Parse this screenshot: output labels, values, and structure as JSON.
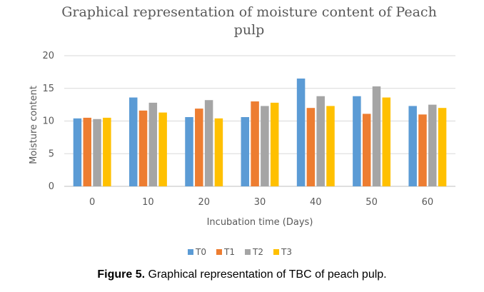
{
  "chart_data": {
    "type": "bar",
    "title_line1": "Graphical representation of moisture content of Peach",
    "title_line2": "pulp",
    "xlabel": "Incubation time (Days)",
    "ylabel": "Moisture content",
    "ylim": [
      0,
      20
    ],
    "yticks": [
      "0",
      "5",
      "10",
      "15",
      "20"
    ],
    "grid": true,
    "legend_position": "bottom-center",
    "categories": [
      "0",
      "10",
      "20",
      "30",
      "40",
      "50",
      "60"
    ],
    "series": [
      {
        "name": "T0",
        "color": "#5B9BD5",
        "values": [
          10.4,
          13.6,
          10.6,
          10.6,
          16.5,
          13.8,
          12.3
        ]
      },
      {
        "name": "T1",
        "color": "#ED7D31",
        "values": [
          10.5,
          11.6,
          11.9,
          13.0,
          12.0,
          11.1,
          11.0
        ]
      },
      {
        "name": "T2",
        "color": "#A5A5A5",
        "values": [
          10.3,
          12.8,
          13.2,
          12.3,
          13.8,
          15.3,
          12.5
        ]
      },
      {
        "name": "T3",
        "color": "#FFC000",
        "values": [
          10.5,
          11.3,
          10.4,
          12.8,
          12.3,
          13.6,
          12.0
        ]
      }
    ]
  },
  "caption": {
    "label": "Figure 5.",
    "text": " Graphical representation of TBC of peach pulp."
  }
}
